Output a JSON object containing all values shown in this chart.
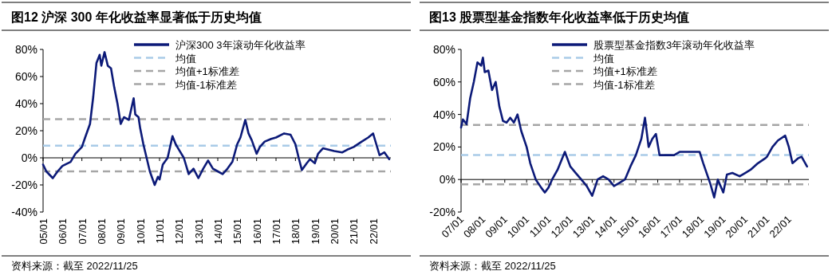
{
  "chart_data": [
    {
      "type": "line",
      "title": "图12 沪深 300 年化收益率显著低于历史均值",
      "annotations": [
        "资料来源：截至 2022/11/25"
      ],
      "legend": "top",
      "x": [
        "2005-01",
        "2005-03",
        "2005-07",
        "2005-10",
        "2006-01",
        "2006-06",
        "2006-09",
        "2007-01",
        "2007-03",
        "2007-06",
        "2007-08",
        "2007-10",
        "2007-12",
        "2008-01",
        "2008-03",
        "2008-05",
        "2008-07",
        "2008-09",
        "2008-11",
        "2009-01",
        "2009-03",
        "2009-06",
        "2009-09",
        "2009-10",
        "2009-12",
        "2010-01",
        "2010-03",
        "2010-05",
        "2010-07",
        "2010-10",
        "2010-12",
        "2011-01",
        "2011-03",
        "2011-06",
        "2011-09",
        "2011-11",
        "2012-01",
        "2012-04",
        "2012-07",
        "2012-10",
        "2013-01",
        "2013-04",
        "2013-07",
        "2013-10",
        "2014-01",
        "2014-04",
        "2014-07",
        "2014-10",
        "2015-01",
        "2015-03",
        "2015-06",
        "2015-08",
        "2015-10",
        "2016-01",
        "2016-03",
        "2016-06",
        "2016-10",
        "2017-01",
        "2017-06",
        "2017-10",
        "2018-01",
        "2018-03",
        "2018-05",
        "2018-08",
        "2018-10",
        "2019-01",
        "2019-03",
        "2019-06",
        "2020-01",
        "2020-06",
        "2020-09",
        "2021-01",
        "2021-06",
        "2021-10",
        "2022-01",
        "2022-03",
        "2022-05",
        "2022-08",
        "2022-11"
      ],
      "series": [
        {
          "name": "沪深300 3年滚动年化收益率",
          "color": "#0c1a78",
          "values": [
            -5,
            -10,
            -15,
            -10,
            -6,
            -3,
            3,
            8,
            15,
            25,
            45,
            70,
            76,
            68,
            78,
            68,
            66,
            52,
            40,
            25,
            30,
            28,
            44,
            32,
            30,
            22,
            10,
            0,
            -10,
            -20,
            -14,
            -16,
            -5,
            0,
            16,
            10,
            6,
            0,
            -12,
            -8,
            -15,
            -8,
            -2,
            -8,
            -10,
            -12,
            -8,
            -3,
            10,
            15,
            28,
            18,
            13,
            3,
            8,
            12,
            14,
            15,
            18,
            17,
            10,
            0,
            -9,
            -4,
            -1,
            -4,
            3,
            7,
            5,
            4,
            6,
            8,
            12,
            15,
            18,
            10,
            2,
            4,
            -1
          ]
        }
      ],
      "ref_lines": [
        {
          "axis": "y",
          "value": 9,
          "label": "均值",
          "color": "#a9cbe8",
          "line_style": "dashed"
        },
        {
          "axis": "y",
          "value": 28.5,
          "label": "均值+1标准差",
          "color": "#a6a6a6",
          "line_style": "dashed"
        },
        {
          "axis": "y",
          "value": -10,
          "label": "均值-1标准差",
          "color": "#a6a6a6",
          "line_style": "dashed"
        }
      ],
      "xlim": [
        "2005-01",
        "2022-12"
      ],
      "xticks": [
        {
          "value": "2005-01",
          "label": "05/01"
        },
        {
          "value": "2006-01",
          "label": "06/01"
        },
        {
          "value": "2007-01",
          "label": "07/01"
        },
        {
          "value": "2008-01",
          "label": "08/01"
        },
        {
          "value": "2009-01",
          "label": "09/01"
        },
        {
          "value": "2010-01",
          "label": "10/01"
        },
        {
          "value": "2011-01",
          "label": "11/01"
        },
        {
          "value": "2012-01",
          "label": "12/01"
        },
        {
          "value": "2013-01",
          "label": "13/01"
        },
        {
          "value": "2014-01",
          "label": "14/01"
        },
        {
          "value": "2015-01",
          "label": "15/01"
        },
        {
          "value": "2016-01",
          "label": "16/01"
        },
        {
          "value": "2017-01",
          "label": "17/01"
        },
        {
          "value": "2018-01",
          "label": "18/01"
        },
        {
          "value": "2019-01",
          "label": "19/01"
        },
        {
          "value": "2020-01",
          "label": "20/01"
        },
        {
          "value": "2021-01",
          "label": "21/01"
        },
        {
          "value": "2022-01",
          "label": "22/01"
        }
      ],
      "ylim": [
        -40,
        80
      ],
      "yticks": [
        {
          "value": -40,
          "label": "-40%"
        },
        {
          "value": -20,
          "label": "-20%"
        },
        {
          "value": 0,
          "label": "0%"
        },
        {
          "value": 20,
          "label": "20%"
        },
        {
          "value": 40,
          "label": "40%"
        },
        {
          "value": 60,
          "label": "60%"
        },
        {
          "value": 80,
          "label": "80%"
        }
      ]
    },
    {
      "type": "line",
      "title": "图13 股票型基金指数年化收益率低于历史均值",
      "annotations": [
        "资料来源：截至 2022/11/25"
      ],
      "legend": "top",
      "x": [
        "2007-01",
        "2007-02",
        "2007-04",
        "2007-06",
        "2007-08",
        "2007-10",
        "2007-12",
        "2008-01",
        "2008-02",
        "2008-04",
        "2008-06",
        "2008-08",
        "2008-10",
        "2008-12",
        "2009-02",
        "2009-04",
        "2009-06",
        "2009-08",
        "2009-10",
        "2010-01",
        "2010-03",
        "2010-06",
        "2010-09",
        "2010-11",
        "2011-01",
        "2011-03",
        "2011-06",
        "2011-10",
        "2012-01",
        "2012-04",
        "2012-07",
        "2012-10",
        "2013-01",
        "2013-04",
        "2013-07",
        "2013-10",
        "2014-01",
        "2014-04",
        "2014-07",
        "2014-10",
        "2015-01",
        "2015-04",
        "2015-06",
        "2015-08",
        "2015-10",
        "2015-12",
        "2016-02",
        "2016-06",
        "2016-10",
        "2017-01",
        "2017-06",
        "2017-12",
        "2018-02",
        "2018-06",
        "2018-08",
        "2018-10",
        "2019-01",
        "2019-03",
        "2019-06",
        "2019-10",
        "2020-01",
        "2020-04",
        "2020-08",
        "2020-12",
        "2021-01",
        "2021-04",
        "2021-07",
        "2021-11",
        "2022-01",
        "2022-03",
        "2022-06",
        "2022-08",
        "2022-11"
      ],
      "series": [
        {
          "name": "股票型基金指数3年滚动年化收益率",
          "color": "#0c1a78",
          "values": [
            32,
            37,
            34,
            50,
            60,
            72,
            70,
            75,
            66,
            67,
            55,
            60,
            45,
            36,
            35,
            38,
            35,
            40,
            30,
            20,
            10,
            0,
            -5,
            -8,
            -5,
            0,
            6,
            17,
            8,
            4,
            0,
            -4,
            -10,
            0,
            2,
            0,
            -4,
            -2,
            0,
            8,
            15,
            25,
            38,
            20,
            25,
            28,
            15,
            15,
            15,
            17,
            17,
            17,
            10,
            -3,
            -11,
            0,
            -8,
            3,
            4,
            2,
            4,
            6,
            10,
            13,
            14,
            20,
            24,
            27,
            20,
            10,
            13,
            14,
            8
          ]
        }
      ],
      "ref_lines": [
        {
          "axis": "y",
          "value": 15,
          "label": "均值",
          "color": "#a9cbe8",
          "line_style": "dashed"
        },
        {
          "axis": "y",
          "value": 33.5,
          "label": "均值+1标准差",
          "color": "#a6a6a6",
          "line_style": "dashed"
        },
        {
          "axis": "y",
          "value": -3,
          "label": "均值-1标准差",
          "color": "#a6a6a6",
          "line_style": "dashed"
        }
      ],
      "xlim": [
        "2007-01",
        "2022-12"
      ],
      "xticks": [
        {
          "value": "2007-01",
          "label": "07/01"
        },
        {
          "value": "2008-01",
          "label": "08/01"
        },
        {
          "value": "2009-01",
          "label": "09/01"
        },
        {
          "value": "2010-01",
          "label": "10/01"
        },
        {
          "value": "2011-01",
          "label": "11/01"
        },
        {
          "value": "2012-01",
          "label": "12/01"
        },
        {
          "value": "2013-01",
          "label": "13/01"
        },
        {
          "value": "2014-01",
          "label": "14/01"
        },
        {
          "value": "2015-01",
          "label": "15/01"
        },
        {
          "value": "2016-01",
          "label": "16/01"
        },
        {
          "value": "2017-01",
          "label": "17/01"
        },
        {
          "value": "2018-01",
          "label": "18/01"
        },
        {
          "value": "2019-01",
          "label": "19/01"
        },
        {
          "value": "2020-01",
          "label": "20/01"
        },
        {
          "value": "2021-01",
          "label": "21/01"
        },
        {
          "value": "2022-01",
          "label": "22/01"
        }
      ],
      "ylim": [
        -20,
        80
      ],
      "yticks": [
        {
          "value": -20,
          "label": "-20%"
        },
        {
          "value": 0,
          "label": "0%"
        },
        {
          "value": 20,
          "label": "20%"
        },
        {
          "value": 40,
          "label": "40%"
        },
        {
          "value": 60,
          "label": "60%"
        },
        {
          "value": 80,
          "label": "80%"
        }
      ]
    }
  ]
}
